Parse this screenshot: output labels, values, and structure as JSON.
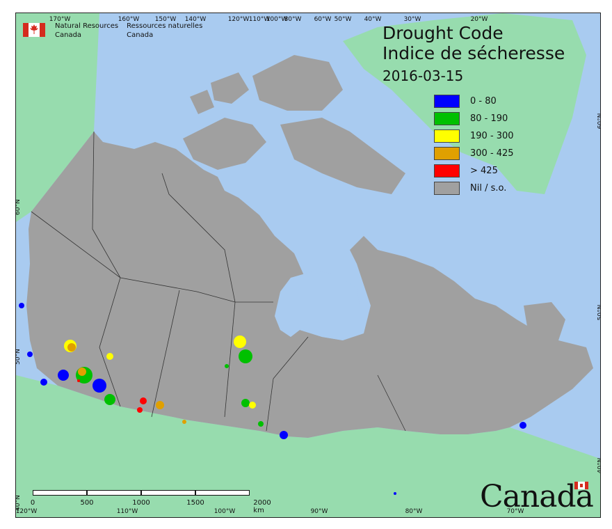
{
  "header": {
    "dept_en_line1": "Natural Resources",
    "dept_en_line2": "Canada",
    "dept_fr_line1": "Ressources naturelles",
    "dept_fr_line2": "Canada"
  },
  "title": {
    "en": "Drought Code",
    "fr": "Indice de sécheresse",
    "date": "2016-03-15"
  },
  "legend": [
    {
      "label": "0 - 80",
      "color": "#0000ff"
    },
    {
      "label": "80 - 190",
      "color": "#00c000"
    },
    {
      "label": "190 - 300",
      "color": "#ffff00"
    },
    {
      "label": "300 - 425",
      "color": "#e0a000"
    },
    {
      "label": "> 425",
      "color": "#ff0000"
    },
    {
      "label": "Nil / s.o.",
      "color": "#a0a0a0"
    }
  ],
  "colors": {
    "water": "#a9cbf0",
    "land_other": "#97dcae",
    "canada": "#a0a0a0",
    "border": "#333333"
  },
  "graticule": {
    "top": [
      "170°W",
      "160°W",
      "150°W",
      "140°W",
      "120°W",
      "110°W",
      "100°W",
      "80°W",
      "60°W",
      "50°W",
      "40°W",
      "30°W",
      "20°W"
    ],
    "bottom": [
      "120°W",
      "110°W",
      "100°W",
      "90°W",
      "80°W",
      "70°W"
    ],
    "left": [
      "60°N",
      "50°N",
      "40°N"
    ],
    "right": [
      "60°N",
      "50°N",
      "40°N"
    ]
  },
  "scale_bar": {
    "labels": [
      "0",
      "500",
      "1000",
      "1500",
      "2000 km"
    ]
  },
  "wordmark": "Canada"
}
